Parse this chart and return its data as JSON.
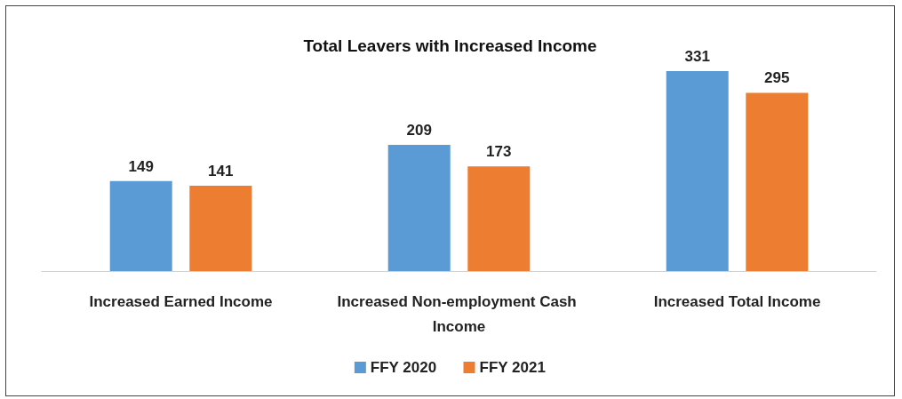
{
  "chart_data": {
    "type": "bar",
    "title": "Total Leavers with Increased Income",
    "categories": [
      "Increased Earned Income",
      "Increased Non-employment Cash Income",
      "Increased Total Income"
    ],
    "series": [
      {
        "name": "FFY 2020",
        "color": "#5b9bd5",
        "values": [
          149,
          209,
          331
        ]
      },
      {
        "name": "FFY 2021",
        "color": "#ed7d31",
        "values": [
          141,
          173,
          295
        ]
      }
    ],
    "data_labels": true,
    "legend": "bottom"
  }
}
